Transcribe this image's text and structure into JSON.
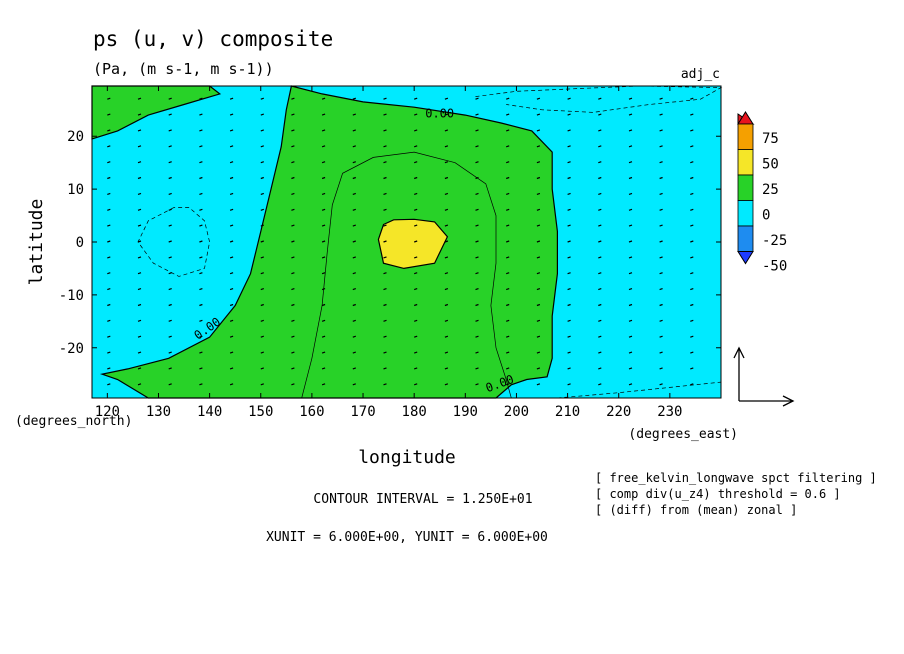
{
  "chart_data": {
    "type": "heatmap",
    "title": "ps (u, v) composite",
    "subtitle": "(Pa, (m s-1, m s-1))",
    "corner_label": "adj_c",
    "xlabel": "longitude",
    "ylabel": "latitude",
    "x_unit": "(degrees_east)",
    "y_unit": "(degrees_north)",
    "xlim": [
      117,
      240
    ],
    "ylim": [
      -29.5,
      29.5
    ],
    "x_ticks": [
      "120",
      "130",
      "140",
      "150",
      "160",
      "170",
      "180",
      "190",
      "200",
      "210",
      "220",
      "230"
    ],
    "y_ticks": [
      "20",
      "10",
      "0",
      "-10",
      "-20"
    ],
    "x_tick_values": [
      120,
      130,
      140,
      150,
      160,
      170,
      180,
      190,
      200,
      210,
      220,
      230
    ],
    "y_tick_values": [
      20,
      10,
      0,
      -10,
      -20
    ],
    "contour_labels": [
      "0.00",
      "0.00",
      "0.00"
    ],
    "contour_interval_text": "CONTOUR INTERVAL = 1.250E+01",
    "unit_vector_text": "XUNIT = 6.000E+00, YUNIT = 6.000E+00",
    "notes": [
      "[ free_kelvin_longwave spct filtering ]",
      "[ comp div(u_z4) threshold = 0.6 ]",
      "[ (diff) from (mean) zonal ]"
    ],
    "colorbar": {
      "labels": [
        "75",
        "50",
        "25",
        "0",
        "-25",
        "-50"
      ],
      "colors": [
        "#e8141e",
        "#f5a000",
        "#f5e628",
        "#28d228",
        "#00eaff",
        "#1e8cf0",
        "#1e3cff"
      ]
    },
    "fill_colors": {
      "below_0": "#00eaff",
      "0_to_25": "#28d228",
      "25_to_50": "#f5e628"
    },
    "regions": [
      {
        "level": "0 to 25",
        "lonlat": [
          [
            156,
            29.5
          ],
          [
            155,
            25
          ],
          [
            154,
            18
          ],
          [
            152,
            10
          ],
          [
            150,
            2
          ],
          [
            148,
            -6
          ],
          [
            145,
            -12
          ],
          [
            140,
            -18
          ],
          [
            132,
            -22
          ],
          [
            124,
            -24
          ],
          [
            119,
            -25
          ],
          [
            122,
            -26
          ],
          [
            128,
            -29.5
          ],
          [
            196,
            -29.5
          ],
          [
            199,
            -27
          ],
          [
            202,
            -26
          ],
          [
            206,
            -25.5
          ],
          [
            207,
            -22
          ],
          [
            207,
            -14
          ],
          [
            208,
            -6
          ],
          [
            208,
            2
          ],
          [
            207,
            10
          ],
          [
            207,
            17
          ],
          [
            203,
            21
          ],
          [
            197,
            22.5
          ],
          [
            190,
            24
          ],
          [
            180,
            25.5
          ],
          [
            170,
            26.5
          ],
          [
            162,
            28
          ],
          [
            156,
            29.5
          ]
        ]
      },
      {
        "level": "0 to 25",
        "lonlat": [
          [
            117,
            29.5
          ],
          [
            140,
            29.5
          ],
          [
            142,
            28
          ],
          [
            135,
            26
          ],
          [
            128,
            24
          ],
          [
            122,
            21
          ],
          [
            117,
            19.5
          ]
        ]
      },
      {
        "level": "25 to 50",
        "lonlat": [
          [
            176,
            4.2
          ],
          [
            180,
            4.3
          ],
          [
            184,
            3.8
          ],
          [
            186.5,
            1
          ],
          [
            184,
            -4
          ],
          [
            178,
            -5
          ],
          [
            174,
            -4
          ],
          [
            173,
            0.5
          ],
          [
            174,
            3.3
          ]
        ]
      }
    ],
    "contours": [
      {
        "level": "12.5",
        "lonlat": [
          [
            158,
            -29.5
          ],
          [
            160,
            -22
          ],
          [
            162,
            -12
          ],
          [
            163,
            -2
          ],
          [
            164,
            7
          ],
          [
            166,
            13
          ],
          [
            172,
            16
          ],
          [
            180,
            17
          ],
          [
            188,
            15
          ],
          [
            194,
            11
          ],
          [
            196,
            5
          ],
          [
            196,
            -4
          ],
          [
            195,
            -12
          ],
          [
            196,
            -20
          ],
          [
            198,
            -26
          ],
          [
            199,
            -29.5
          ]
        ]
      },
      {
        "level": "-12.5",
        "lonlat": [
          [
            133,
            6.5
          ],
          [
            128,
            4
          ],
          [
            126,
            0
          ],
          [
            129,
            -4
          ],
          [
            134,
            -6.5
          ],
          [
            139,
            -5
          ],
          [
            140,
            0
          ],
          [
            139,
            4
          ],
          [
            136,
            6.5
          ],
          [
            133,
            6.5
          ]
        ]
      },
      {
        "level": "-12.5",
        "lonlat": [
          [
            192,
            27.5
          ],
          [
            200,
            28.5
          ],
          [
            212,
            29
          ],
          [
            224,
            29.5
          ],
          [
            240,
            29.2
          ],
          [
            236,
            27
          ],
          [
            226,
            26
          ],
          [
            215,
            24.5
          ],
          [
            205,
            25
          ],
          [
            198,
            26
          ]
        ]
      },
      {
        "level": "-12.5",
        "lonlat": [
          [
            208,
            -29.5
          ],
          [
            220,
            -28.5
          ],
          [
            230,
            -27.5
          ],
          [
            240,
            -26.5
          ]
        ]
      }
    ],
    "contour_label_positions": [
      [
        185,
        23.5
      ],
      [
        140,
        -17
      ],
      [
        197,
        -27.5
      ]
    ],
    "vectors": {
      "lon": [
        120,
        126,
        132,
        138,
        144,
        150,
        156,
        162,
        168,
        174,
        180,
        186,
        192,
        198,
        204,
        210,
        216,
        222,
        228,
        234
      ],
      "lat": [
        27,
        24,
        21,
        18,
        15,
        12,
        9,
        6,
        3,
        0,
        -3,
        -6,
        -9,
        -12,
        -15,
        -18,
        -21,
        -24,
        -27
      ],
      "typical_u": 0.6,
      "typical_v": 0.2
    }
  }
}
